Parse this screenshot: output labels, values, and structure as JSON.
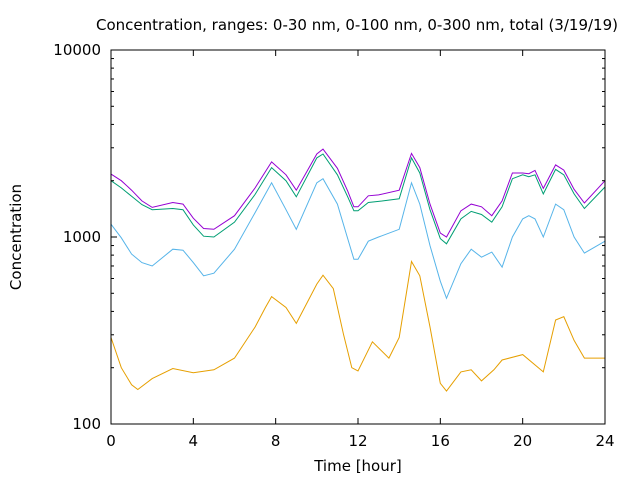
{
  "chart_data": {
    "type": "line",
    "title": "Concentration, ranges: 0-30 nm, 0-100 nm, 0-300 nm, total (3/19/19)",
    "xlabel": "Time [hour]",
    "ylabel": "Concentration",
    "xlim": [
      0,
      24
    ],
    "ylim": [
      100,
      10000
    ],
    "yscale": "log",
    "grid": false,
    "xticks": [
      0,
      4,
      8,
      12,
      16,
      20,
      24
    ],
    "xtick_labels": [
      "0",
      "4",
      "8",
      "12",
      "16",
      "20",
      "24"
    ],
    "yticks": [
      100,
      1000,
      10000
    ],
    "ytick_labels": [
      "100",
      "1000",
      "10000"
    ],
    "series": [
      {
        "color": "#e69f00",
        "x": [
          0,
          0.5,
          1,
          1.3,
          2,
          3,
          4,
          5,
          6,
          7,
          7.5,
          7.8,
          8.5,
          9,
          10,
          10.3,
          10.8,
          11.3,
          11.7,
          12,
          12.7,
          13.5,
          14,
          14.6,
          15,
          15.5,
          16,
          16.3,
          17,
          17.5,
          18,
          18.6,
          19,
          20,
          21,
          21.6,
          22,
          22.5,
          23,
          24
        ],
        "values": [
          290,
          200,
          162,
          153,
          175,
          198,
          188,
          195,
          225,
          330,
          420,
          480,
          420,
          345,
          560,
          625,
          530,
          300,
          200,
          192,
          275,
          225,
          290,
          740,
          620,
          330,
          165,
          150,
          190,
          195,
          170,
          195,
          220,
          235,
          190,
          360,
          375,
          280,
          225,
          225
        ]
      },
      {
        "color": "#56b4e9",
        "x": [
          0,
          0.5,
          1,
          1.5,
          2,
          3,
          3.5,
          4,
          4.5,
          5,
          6,
          7,
          7.8,
          8.5,
          9,
          10,
          10.3,
          11,
          11.5,
          11.8,
          12,
          12.5,
          13,
          14,
          14.6,
          15,
          15.5,
          16,
          16.3,
          17,
          17.5,
          18,
          18.5,
          19,
          19.5,
          20,
          20.3,
          20.6,
          21,
          21.6,
          22,
          22.5,
          23,
          24
        ],
        "values": [
          1170,
          990,
          810,
          730,
          700,
          860,
          850,
          730,
          620,
          640,
          860,
          1350,
          1950,
          1400,
          1100,
          1950,
          2050,
          1500,
          980,
          760,
          760,
          950,
          1000,
          1100,
          1950,
          1500,
          900,
          580,
          470,
          720,
          860,
          780,
          830,
          690,
          1000,
          1250,
          1300,
          1250,
          1000,
          1500,
          1400,
          1000,
          820,
          950
        ]
      },
      {
        "color": "#009e73",
        "x": [
          0,
          0.5,
          1,
          1.5,
          2,
          3,
          3.5,
          4,
          4.5,
          5,
          6,
          7,
          7.8,
          8.5,
          9,
          10,
          10.3,
          11,
          11.5,
          11.8,
          12,
          12.5,
          13,
          14,
          14.6,
          15,
          15.5,
          16,
          16.3,
          17,
          17.5,
          18,
          18.5,
          19,
          19.5,
          20,
          20.3,
          20.6,
          21,
          21.6,
          22,
          22.5,
          23,
          24
        ],
        "values": [
          2000,
          1830,
          1650,
          1490,
          1400,
          1420,
          1400,
          1160,
          1010,
          1000,
          1200,
          1690,
          2350,
          2000,
          1640,
          2650,
          2780,
          2150,
          1640,
          1380,
          1380,
          1530,
          1550,
          1600,
          2650,
          2200,
          1400,
          980,
          920,
          1250,
          1370,
          1320,
          1200,
          1450,
          2050,
          2150,
          2100,
          2150,
          1700,
          2300,
          2150,
          1700,
          1420,
          1850
        ]
      },
      {
        "color": "#9400d3",
        "x": [
          0,
          0.5,
          1,
          1.5,
          2,
          3,
          3.5,
          4,
          4.5,
          5,
          6,
          7,
          7.8,
          8.5,
          9,
          10,
          10.3,
          11,
          11.5,
          11.8,
          12,
          12.5,
          13,
          14,
          14.6,
          15,
          15.5,
          16,
          16.3,
          17,
          17.5,
          18,
          18.5,
          19,
          19.5,
          20,
          20.3,
          20.6,
          21,
          21.6,
          22,
          22.5,
          23,
          24
        ],
        "values": [
          2170,
          2000,
          1780,
          1560,
          1440,
          1530,
          1500,
          1260,
          1110,
          1100,
          1300,
          1830,
          2520,
          2150,
          1780,
          2780,
          2950,
          2330,
          1760,
          1450,
          1450,
          1660,
          1680,
          1780,
          2800,
          2350,
          1500,
          1050,
          1000,
          1380,
          1500,
          1450,
          1300,
          1560,
          2200,
          2200,
          2180,
          2270,
          1820,
          2430,
          2280,
          1800,
          1520,
          2000
        ]
      }
    ]
  }
}
